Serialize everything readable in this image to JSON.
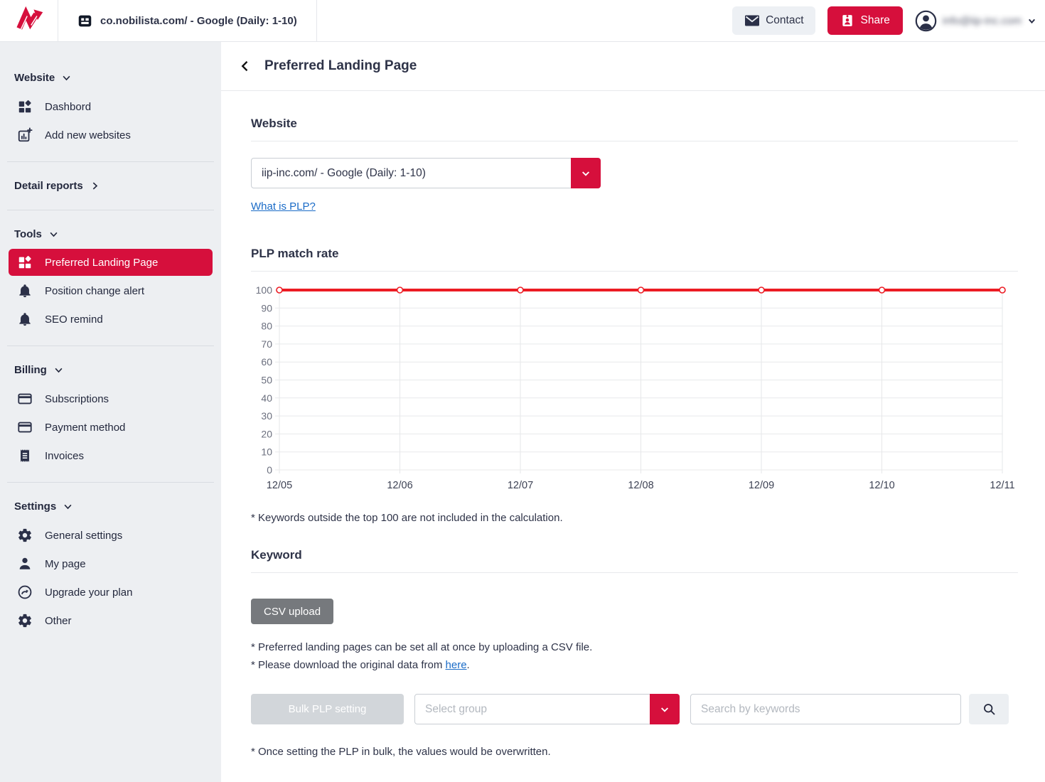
{
  "colors": {
    "accent_red": "#d60f3c",
    "chart_line_red": "#ec1c24",
    "link_blue": "#1a6bc7",
    "sidebar_bg": "#edeff2"
  },
  "topbar": {
    "site_tab_label": "co.nobilista.com/ - Google (Daily: 1-10)",
    "contact_label": "Contact",
    "share_label": "Share",
    "user_email": "info@iip-inc.com"
  },
  "sidebar": {
    "sections": [
      {
        "header": "Website",
        "items": [
          {
            "label": "Dashbord"
          },
          {
            "label": "Add new websites"
          }
        ]
      },
      {
        "header": "Detail reports",
        "items": []
      },
      {
        "header": "Tools",
        "items": [
          {
            "label": "Preferred Landing Page"
          },
          {
            "label": "Position change alert"
          },
          {
            "label": "SEO remind"
          }
        ]
      },
      {
        "header": "Billing",
        "items": [
          {
            "label": "Subscriptions"
          },
          {
            "label": "Payment method"
          },
          {
            "label": "Invoices"
          }
        ]
      },
      {
        "header": "Settings",
        "items": [
          {
            "label": "General settings"
          },
          {
            "label": "My page"
          },
          {
            "label": "Upgrade your plan"
          },
          {
            "label": "Other"
          }
        ]
      }
    ]
  },
  "main": {
    "page_title": "Preferred Landing Page",
    "website": {
      "heading": "Website",
      "selected_value": "iip-inc.com/ - Google (Daily: 1-10)",
      "plp_link": "What is PLP?"
    },
    "plp": {
      "heading": "PLP match rate",
      "note": "* Keywords outside the top 100 are not included in the calculation."
    },
    "keyword": {
      "heading": "Keyword",
      "csv_button": "CSV upload",
      "note_csv": "* Preferred landing pages can be set all at once by uploading a CSV file.",
      "note_download_prefix": "* Please download the original data from ",
      "note_download_link": "here",
      "note_download_suffix": ".",
      "bulk_button": "Bulk PLP setting",
      "select_group_placeholder": "Select group",
      "search_placeholder": "Search by keywords",
      "note_overwrite": "* Once setting the PLP in bulk, the values would be overwritten."
    }
  },
  "chart_data": {
    "type": "line",
    "title": "PLP match rate",
    "x": [
      "12/05",
      "12/06",
      "12/07",
      "12/08",
      "12/09",
      "12/10",
      "12/11"
    ],
    "series": [
      {
        "name": "PLP match rate",
        "values": [
          100,
          100,
          100,
          100,
          100,
          100,
          100
        ]
      }
    ],
    "xlabel": "",
    "ylabel": "",
    "ylim": [
      0,
      100
    ],
    "ytick_step": 10,
    "grid": true,
    "legend": false,
    "line_color": "#ec1c24",
    "marker": "open-circle"
  }
}
